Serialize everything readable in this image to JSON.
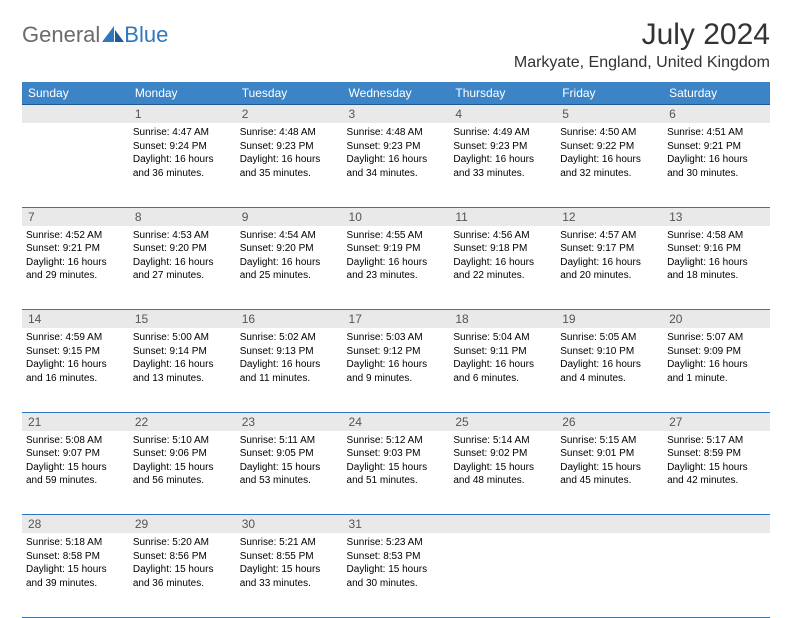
{
  "branding": {
    "logo_part1": "General",
    "logo_part2": "Blue",
    "logo_color1": "#6b6b6b",
    "logo_color2": "#2f78bd"
  },
  "header": {
    "month_title": "July 2024",
    "location": "Markyate, England, United Kingdom"
  },
  "styling": {
    "header_bg": "#3d84c6",
    "header_text": "#ffffff",
    "daynum_bg": "#e9e9e9",
    "daynum_text": "#555555",
    "rule_color": "#2f78bd",
    "body_text": "#000000",
    "title_fontsize": 30,
    "location_fontsize": 16,
    "header_fontsize": 12,
    "cell_fontsize": 10,
    "page_bg": "#ffffff"
  },
  "day_labels": [
    "Sunday",
    "Monday",
    "Tuesday",
    "Wednesday",
    "Thursday",
    "Friday",
    "Saturday"
  ],
  "first_weekday_index": 1,
  "days_in_month": 31,
  "days": {
    "1": {
      "sunrise": "Sunrise: 4:47 AM",
      "sunset": "Sunset: 9:24 PM",
      "daylight1": "Daylight: 16 hours",
      "daylight2": "and 36 minutes."
    },
    "2": {
      "sunrise": "Sunrise: 4:48 AM",
      "sunset": "Sunset: 9:23 PM",
      "daylight1": "Daylight: 16 hours",
      "daylight2": "and 35 minutes."
    },
    "3": {
      "sunrise": "Sunrise: 4:48 AM",
      "sunset": "Sunset: 9:23 PM",
      "daylight1": "Daylight: 16 hours",
      "daylight2": "and 34 minutes."
    },
    "4": {
      "sunrise": "Sunrise: 4:49 AM",
      "sunset": "Sunset: 9:23 PM",
      "daylight1": "Daylight: 16 hours",
      "daylight2": "and 33 minutes."
    },
    "5": {
      "sunrise": "Sunrise: 4:50 AM",
      "sunset": "Sunset: 9:22 PM",
      "daylight1": "Daylight: 16 hours",
      "daylight2": "and 32 minutes."
    },
    "6": {
      "sunrise": "Sunrise: 4:51 AM",
      "sunset": "Sunset: 9:21 PM",
      "daylight1": "Daylight: 16 hours",
      "daylight2": "and 30 minutes."
    },
    "7": {
      "sunrise": "Sunrise: 4:52 AM",
      "sunset": "Sunset: 9:21 PM",
      "daylight1": "Daylight: 16 hours",
      "daylight2": "and 29 minutes."
    },
    "8": {
      "sunrise": "Sunrise: 4:53 AM",
      "sunset": "Sunset: 9:20 PM",
      "daylight1": "Daylight: 16 hours",
      "daylight2": "and 27 minutes."
    },
    "9": {
      "sunrise": "Sunrise: 4:54 AM",
      "sunset": "Sunset: 9:20 PM",
      "daylight1": "Daylight: 16 hours",
      "daylight2": "and 25 minutes."
    },
    "10": {
      "sunrise": "Sunrise: 4:55 AM",
      "sunset": "Sunset: 9:19 PM",
      "daylight1": "Daylight: 16 hours",
      "daylight2": "and 23 minutes."
    },
    "11": {
      "sunrise": "Sunrise: 4:56 AM",
      "sunset": "Sunset: 9:18 PM",
      "daylight1": "Daylight: 16 hours",
      "daylight2": "and 22 minutes."
    },
    "12": {
      "sunrise": "Sunrise: 4:57 AM",
      "sunset": "Sunset: 9:17 PM",
      "daylight1": "Daylight: 16 hours",
      "daylight2": "and 20 minutes."
    },
    "13": {
      "sunrise": "Sunrise: 4:58 AM",
      "sunset": "Sunset: 9:16 PM",
      "daylight1": "Daylight: 16 hours",
      "daylight2": "and 18 minutes."
    },
    "14": {
      "sunrise": "Sunrise: 4:59 AM",
      "sunset": "Sunset: 9:15 PM",
      "daylight1": "Daylight: 16 hours",
      "daylight2": "and 16 minutes."
    },
    "15": {
      "sunrise": "Sunrise: 5:00 AM",
      "sunset": "Sunset: 9:14 PM",
      "daylight1": "Daylight: 16 hours",
      "daylight2": "and 13 minutes."
    },
    "16": {
      "sunrise": "Sunrise: 5:02 AM",
      "sunset": "Sunset: 9:13 PM",
      "daylight1": "Daylight: 16 hours",
      "daylight2": "and 11 minutes."
    },
    "17": {
      "sunrise": "Sunrise: 5:03 AM",
      "sunset": "Sunset: 9:12 PM",
      "daylight1": "Daylight: 16 hours",
      "daylight2": "and 9 minutes."
    },
    "18": {
      "sunrise": "Sunrise: 5:04 AM",
      "sunset": "Sunset: 9:11 PM",
      "daylight1": "Daylight: 16 hours",
      "daylight2": "and 6 minutes."
    },
    "19": {
      "sunrise": "Sunrise: 5:05 AM",
      "sunset": "Sunset: 9:10 PM",
      "daylight1": "Daylight: 16 hours",
      "daylight2": "and 4 minutes."
    },
    "20": {
      "sunrise": "Sunrise: 5:07 AM",
      "sunset": "Sunset: 9:09 PM",
      "daylight1": "Daylight: 16 hours",
      "daylight2": "and 1 minute."
    },
    "21": {
      "sunrise": "Sunrise: 5:08 AM",
      "sunset": "Sunset: 9:07 PM",
      "daylight1": "Daylight: 15 hours",
      "daylight2": "and 59 minutes."
    },
    "22": {
      "sunrise": "Sunrise: 5:10 AM",
      "sunset": "Sunset: 9:06 PM",
      "daylight1": "Daylight: 15 hours",
      "daylight2": "and 56 minutes."
    },
    "23": {
      "sunrise": "Sunrise: 5:11 AM",
      "sunset": "Sunset: 9:05 PM",
      "daylight1": "Daylight: 15 hours",
      "daylight2": "and 53 minutes."
    },
    "24": {
      "sunrise": "Sunrise: 5:12 AM",
      "sunset": "Sunset: 9:03 PM",
      "daylight1": "Daylight: 15 hours",
      "daylight2": "and 51 minutes."
    },
    "25": {
      "sunrise": "Sunrise: 5:14 AM",
      "sunset": "Sunset: 9:02 PM",
      "daylight1": "Daylight: 15 hours",
      "daylight2": "and 48 minutes."
    },
    "26": {
      "sunrise": "Sunrise: 5:15 AM",
      "sunset": "Sunset: 9:01 PM",
      "daylight1": "Daylight: 15 hours",
      "daylight2": "and 45 minutes."
    },
    "27": {
      "sunrise": "Sunrise: 5:17 AM",
      "sunset": "Sunset: 8:59 PM",
      "daylight1": "Daylight: 15 hours",
      "daylight2": "and 42 minutes."
    },
    "28": {
      "sunrise": "Sunrise: 5:18 AM",
      "sunset": "Sunset: 8:58 PM",
      "daylight1": "Daylight: 15 hours",
      "daylight2": "and 39 minutes."
    },
    "29": {
      "sunrise": "Sunrise: 5:20 AM",
      "sunset": "Sunset: 8:56 PM",
      "daylight1": "Daylight: 15 hours",
      "daylight2": "and 36 minutes."
    },
    "30": {
      "sunrise": "Sunrise: 5:21 AM",
      "sunset": "Sunset: 8:55 PM",
      "daylight1": "Daylight: 15 hours",
      "daylight2": "and 33 minutes."
    },
    "31": {
      "sunrise": "Sunrise: 5:23 AM",
      "sunset": "Sunset: 8:53 PM",
      "daylight1": "Daylight: 15 hours",
      "daylight2": "and 30 minutes."
    }
  }
}
